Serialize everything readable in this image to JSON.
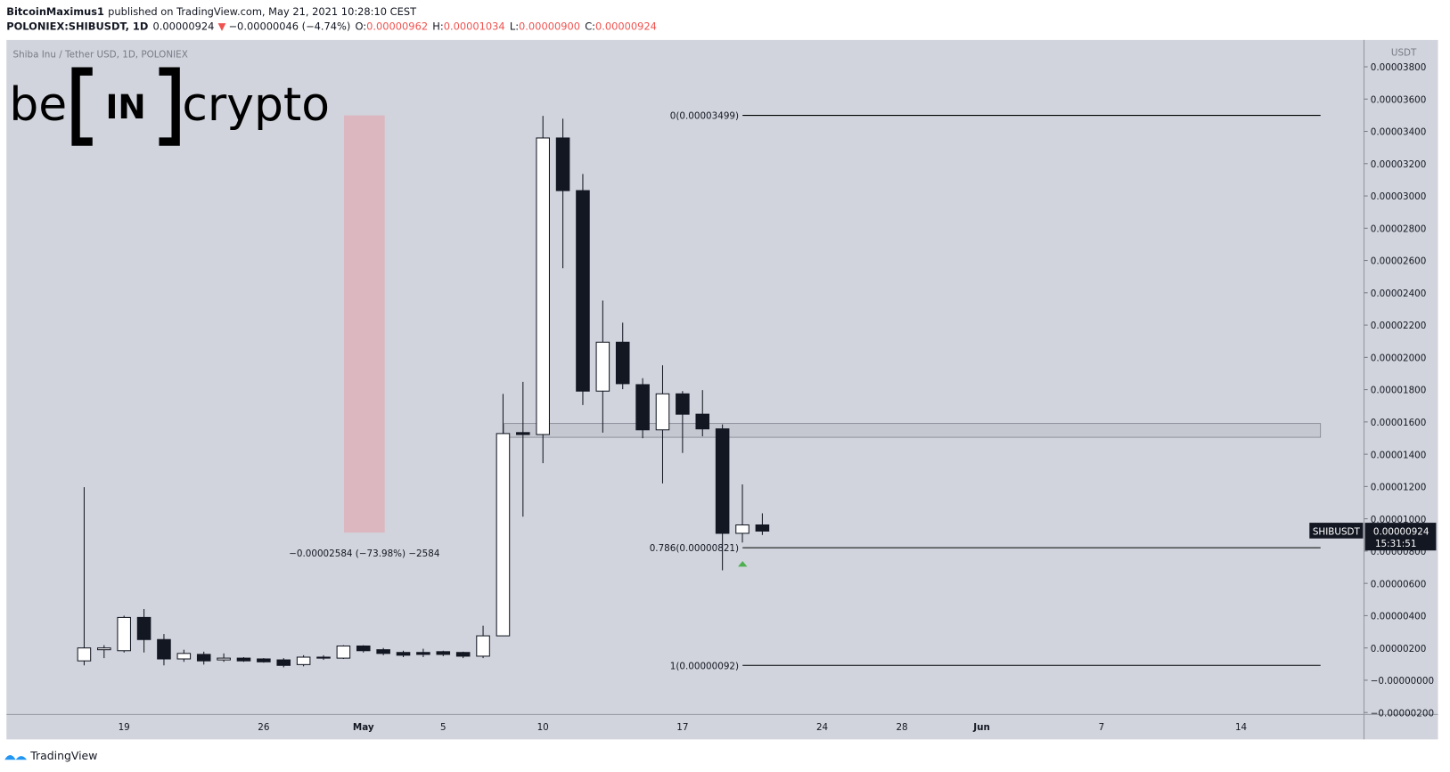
{
  "header": {
    "author": "BitcoinMaximus1",
    "published": "published on TradingView.com, May 21, 2021 10:28:10 CEST",
    "symbol": "POLONIEX:SHIBUSDT, 1D",
    "last": "0.00000924",
    "arrow": "▼",
    "change": "−0.00000046 (−4.74%)",
    "ohlc": [
      {
        "key": "O:",
        "value": "0.00000962"
      },
      {
        "key": "H:",
        "value": "0.00001034"
      },
      {
        "key": "L:",
        "value": "0.00000900"
      },
      {
        "key": "C:",
        "value": "0.00000924"
      }
    ]
  },
  "logo": {
    "left": "be",
    "middle": "IN",
    "right": "crypto"
  },
  "footer": "TradingView",
  "chart_data": {
    "type": "candlestick",
    "title": "Shiba Inu / Tether USD, 1D, POLONIEX",
    "y_axis_label": "USDT",
    "categories": [
      null,
      null,
      "19",
      null,
      null,
      null,
      null,
      null,
      null,
      "26",
      null,
      null,
      null,
      null,
      "May",
      null,
      null,
      null,
      "5",
      null,
      null,
      null,
      null,
      "10",
      null,
      null,
      null,
      null,
      null,
      null,
      "17",
      null,
      null,
      null,
      null,
      null,
      null,
      "24",
      null,
      null,
      null,
      "28",
      null,
      null,
      null,
      "Jun",
      null,
      null,
      null,
      null,
      null,
      "7",
      null,
      null,
      null,
      null,
      null,
      null,
      "14",
      null,
      null,
      null,
      null,
      null,
      null
    ],
    "open": [
      1.2e-06,
      1.89e-06,
      1.83e-06,
      3.89e-06,
      2.52e-06,
      1.32e-06,
      1.6e-06,
      1.26e-06,
      1.37e-06,
      1.32e-06,
      1.26e-06,
      9.7e-07,
      1.43e-06,
      1.37e-06,
      2.12e-06,
      1.89e-06,
      1.72e-06,
      1.72e-06,
      1.77e-06,
      1.72e-06,
      1.49e-06,
      2.75e-06,
      1.534e-05,
      1.522e-05,
      3.359e-05,
      3.033e-05,
      1.791e-05,
      2.094e-05,
      1.831e-05,
      1.551e-05,
      1.774e-05,
      1.648e-05,
      1.557e-05,
      9.1e-06,
      9.62e-06,
      null,
      null,
      null,
      null,
      null,
      null,
      null,
      null,
      null,
      null,
      null,
      null,
      null,
      null,
      null,
      null,
      null,
      null,
      null,
      null,
      null,
      null,
      null,
      null,
      null,
      null,
      null,
      null,
      null,
      null
    ],
    "high": [
      1.196e-05,
      2.17e-06,
      4e-06,
      4.41e-06,
      2.86e-06,
      1.89e-06,
      1.77e-06,
      1.66e-06,
      1.43e-06,
      1.37e-06,
      1.37e-06,
      1.55e-06,
      1.55e-06,
      2.17e-06,
      2.17e-06,
      2e-06,
      1.83e-06,
      1.95e-06,
      1.83e-06,
      1.77e-06,
      3.38e-06,
      1.774e-05,
      1.848e-05,
      3.496e-05,
      3.479e-05,
      3.136e-05,
      2.352e-05,
      2.215e-05,
      1.871e-05,
      1.951e-05,
      1.791e-05,
      1.797e-05,
      1.585e-05,
      1.213e-05,
      1.034e-05,
      null,
      null,
      null,
      null,
      null,
      null,
      null,
      null,
      null,
      null,
      null,
      null,
      null,
      null,
      null,
      null,
      null,
      null,
      null,
      null,
      null,
      null,
      null,
      null,
      null,
      null,
      null,
      null,
      null,
      null
    ],
    "low": [
      9.2e-07,
      1.37e-06,
      1.72e-06,
      1.72e-06,
      9.2e-07,
      1.14e-06,
      9.7e-07,
      1.14e-06,
      1.14e-06,
      1.09e-06,
      8e-07,
      8.6e-07,
      1.26e-06,
      1.32e-06,
      1.72e-06,
      1.55e-06,
      1.43e-06,
      1.43e-06,
      1.49e-06,
      1.37e-06,
      1.37e-06,
      2.75e-06,
      1.013e-05,
      1.345e-05,
      2.552e-05,
      1.705e-05,
      1.534e-05,
      1.803e-05,
      1.499e-05,
      1.219e-05,
      1.408e-05,
      1.511e-05,
      6.81e-06,
      8.53e-06,
      9e-06,
      null,
      null,
      null,
      null,
      null,
      null,
      null,
      null,
      null,
      null,
      null,
      null,
      null,
      null,
      null,
      null,
      null,
      null,
      null,
      null,
      null,
      null,
      null,
      null,
      null,
      null,
      null,
      null,
      null,
      null
    ],
    "close": [
      2e-06,
      2e-06,
      3.89e-06,
      2.52e-06,
      1.32e-06,
      1.66e-06,
      1.2e-06,
      1.37e-06,
      1.2e-06,
      1.14e-06,
      9.2e-07,
      1.43e-06,
      1.37e-06,
      2.12e-06,
      1.83e-06,
      1.66e-06,
      1.55e-06,
      1.6e-06,
      1.6e-06,
      1.49e-06,
      2.75e-06,
      1.528e-05,
      1.522e-05,
      3.359e-05,
      3.033e-05,
      1.791e-05,
      2.094e-05,
      1.837e-05,
      1.551e-05,
      1.774e-05,
      1.648e-05,
      1.557e-05,
      9.1e-06,
      9.62e-06,
      9.24e-06,
      null,
      null,
      null,
      null,
      null,
      null,
      null,
      null,
      null,
      null,
      null,
      null,
      null,
      null,
      null,
      null,
      null,
      null,
      null,
      null,
      null,
      null,
      null,
      null,
      null,
      null,
      null,
      null,
      null,
      null
    ],
    "up_color": "#ffffff",
    "down_color": "#131722",
    "ylim": [
      -2.12e-06,
      3.966e-05
    ],
    "yticks": [
      {
        "value": 3.8e-05,
        "label": "0.00003800"
      },
      {
        "value": 3.6e-05,
        "label": "0.00003600"
      },
      {
        "value": 3.4e-05,
        "label": "0.00003400"
      },
      {
        "value": 3.2e-05,
        "label": "0.00003200"
      },
      {
        "value": 3e-05,
        "label": "0.00003000"
      },
      {
        "value": 2.8e-05,
        "label": "0.00002800"
      },
      {
        "value": 2.6e-05,
        "label": "0.00002600"
      },
      {
        "value": 2.4e-05,
        "label": "0.00002400"
      },
      {
        "value": 2.2e-05,
        "label": "0.00002200"
      },
      {
        "value": 2e-05,
        "label": "0.00002000"
      },
      {
        "value": 1.8e-05,
        "label": "0.00001800"
      },
      {
        "value": 1.6e-05,
        "label": "0.00001600"
      },
      {
        "value": 1.4e-05,
        "label": "0.00001400"
      },
      {
        "value": 1.2e-05,
        "label": "0.00001200"
      },
      {
        "value": 1e-05,
        "label": "0.00001000"
      },
      {
        "value": 8e-06,
        "label": "0.00000800"
      },
      {
        "value": 6e-06,
        "label": "0.00000600"
      },
      {
        "value": 4e-06,
        "label": "0.00000400"
      },
      {
        "value": 2e-06,
        "label": "0.00000200"
      },
      {
        "value": 0,
        "label": "−0.00000000"
      },
      {
        "value": -2e-06,
        "label": "−0.00000200"
      }
    ],
    "grid": false,
    "fib_levels": [
      {
        "value": 3.499e-05,
        "label": "0(0.00003499)"
      },
      {
        "value": 8.21e-06,
        "label": "0.786(0.00000821)"
      },
      {
        "value": 9.2e-07,
        "label": "1(0.00000092)"
      }
    ],
    "zone": [
      1.505e-05,
      1.59e-05
    ],
    "measure": {
      "from": 3.499e-05,
      "to": 9.15e-06,
      "label": "−0.00002584 (−73.98%) −2584",
      "color": "#e5a4ae"
    },
    "last_price": {
      "value": 9.24e-06,
      "label": "0.00000924",
      "symbol": "SHIBUSDT",
      "countdown": "15:31:51"
    }
  }
}
